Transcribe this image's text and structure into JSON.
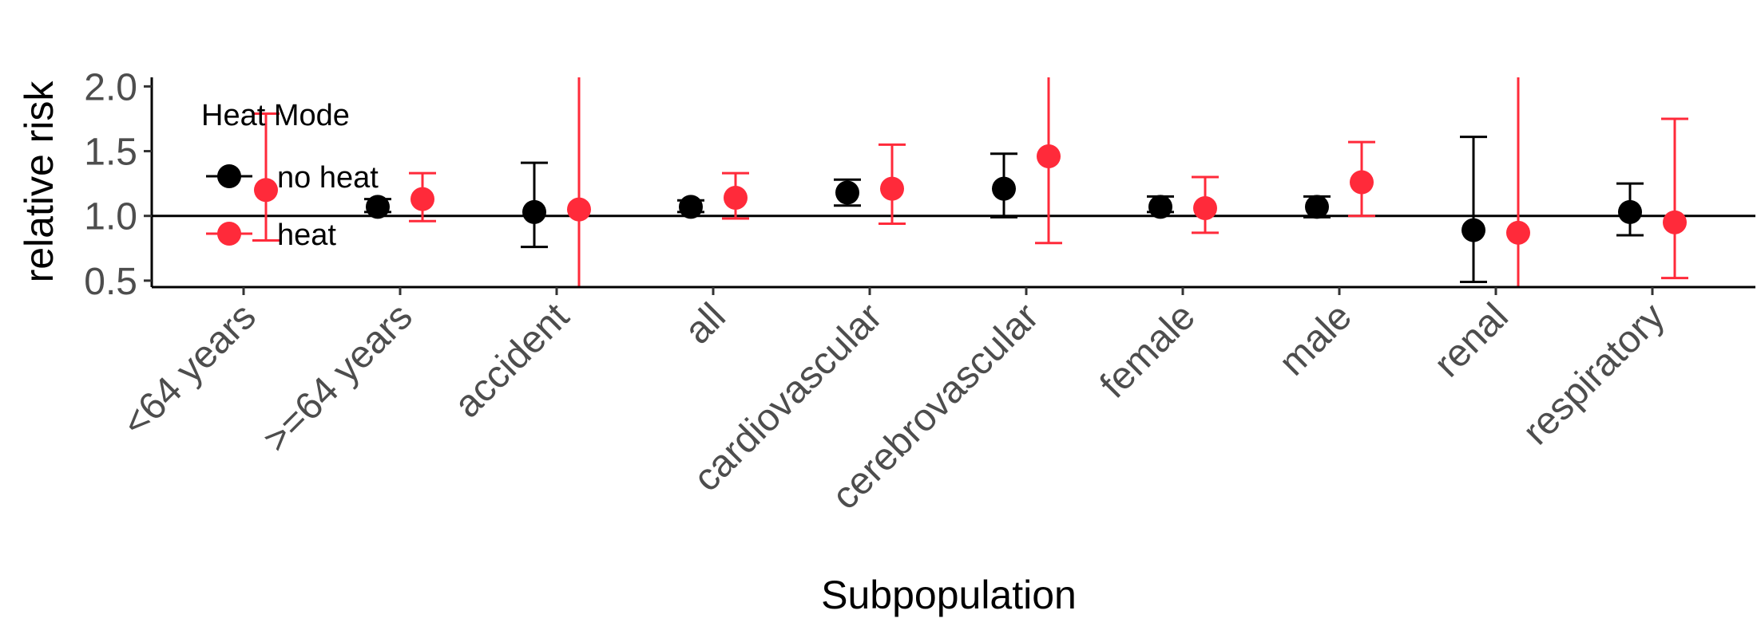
{
  "chart_data": {
    "type": "scatter",
    "subtype": "point-errorbar",
    "title": "",
    "xlabel": "Subpopulation",
    "ylabel": "relative risk",
    "ylim": [
      0.45,
      2.07
    ],
    "yticks": [
      "0.5",
      "1.0",
      "1.5",
      "2.0"
    ],
    "yticks_values": [
      0.5,
      1.0,
      1.5,
      2.0
    ],
    "reference_line": 1.0,
    "grid": false,
    "legend": {
      "title": "Heat Mode",
      "position": "top-left-inside"
    },
    "categories": [
      "<64 years",
      ">=64 years",
      "accident",
      "all",
      "cardiovascular",
      "cerebrovascular",
      "female",
      "male",
      "renal",
      "respiratory"
    ],
    "series": [
      {
        "name": "no heat",
        "color": "#000000",
        "values": [
          null,
          1.07,
          1.03,
          1.07,
          1.18,
          1.21,
          1.07,
          1.07,
          0.89,
          1.03
        ],
        "lower": [
          null,
          1.03,
          0.76,
          1.03,
          1.08,
          0.99,
          1.03,
          0.99,
          0.49,
          0.85
        ],
        "upper": [
          null,
          1.13,
          1.41,
          1.12,
          1.28,
          1.48,
          1.15,
          1.15,
          1.61,
          1.25
        ]
      },
      {
        "name": "heat",
        "color": "#ff2a3a",
        "values": [
          1.2,
          1.13,
          1.05,
          1.14,
          1.21,
          1.46,
          1.06,
          1.26,
          0.87,
          0.95
        ],
        "lower": [
          0.81,
          0.96,
          0.45,
          0.98,
          0.94,
          0.79,
          0.87,
          1.0,
          0.45,
          0.52
        ],
        "upper": [
          1.79,
          1.33,
          2.07,
          1.33,
          1.55,
          2.07,
          1.3,
          1.57,
          2.07,
          1.75
        ]
      }
    ]
  }
}
